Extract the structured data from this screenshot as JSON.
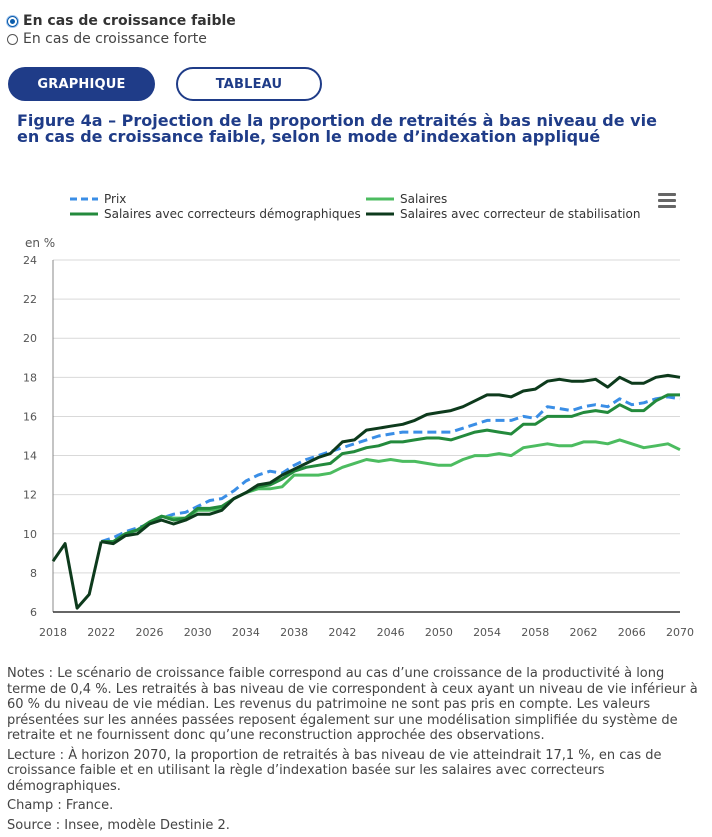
{
  "options": {
    "faible": "En cas de croissance faible",
    "forte": "En cas de croissance forte"
  },
  "tabs": {
    "graph": "GRAPHIQUE",
    "table": "TABLEAU"
  },
  "figure_title": "Figure 4a – Projection de la proportion de retraités à bas niveau de vie en cas de croissance faible, selon le mode d’indexation appliqué",
  "legend": {
    "prix": "Prix",
    "salaires": "Salaires",
    "corr_demo": "Salaires avec correcteurs démographiques",
    "corr_stab": "Salaires avec correcteur de stabilisation"
  },
  "colors": {
    "prix": "#3a8ee6",
    "salaires": "#4cbc60",
    "corr_demo": "#238a3c",
    "corr_stab": "#0d3a1c",
    "accent": "#1f3c88"
  },
  "unit_label": "en %",
  "chart_data": {
    "type": "line",
    "ylabel": "en %",
    "ylim": [
      6,
      24
    ],
    "yticks": [
      6,
      8,
      10,
      12,
      14,
      16,
      18,
      20,
      22,
      24
    ],
    "xlim": [
      2018,
      2070
    ],
    "xticks": [
      2018,
      2022,
      2026,
      2030,
      2034,
      2038,
      2042,
      2046,
      2050,
      2054,
      2058,
      2062,
      2066,
      2070
    ],
    "x": [
      2018,
      2019,
      2020,
      2021,
      2022,
      2023,
      2024,
      2025,
      2026,
      2027,
      2028,
      2029,
      2030,
      2031,
      2032,
      2033,
      2034,
      2035,
      2036,
      2037,
      2038,
      2039,
      2040,
      2041,
      2042,
      2043,
      2044,
      2045,
      2046,
      2047,
      2048,
      2049,
      2050,
      2051,
      2052,
      2053,
      2054,
      2055,
      2056,
      2057,
      2058,
      2059,
      2060,
      2061,
      2062,
      2063,
      2064,
      2065,
      2066,
      2067,
      2068,
      2069,
      2070
    ],
    "historical_x": [
      2018,
      2019,
      2020,
      2021,
      2022
    ],
    "historical_values": [
      8.6,
      9.5,
      6.2,
      6.9,
      9.6
    ],
    "series": [
      {
        "key": "prix",
        "name": "Prix",
        "dashed": true,
        "values": [
          null,
          null,
          null,
          null,
          9.6,
          9.8,
          10.1,
          10.3,
          10.5,
          10.8,
          11.0,
          11.1,
          11.4,
          11.7,
          11.8,
          12.2,
          12.7,
          13.0,
          13.2,
          13.1,
          13.5,
          13.8,
          14.0,
          14.2,
          14.4,
          14.6,
          14.8,
          15.0,
          15.1,
          15.2,
          15.2,
          15.2,
          15.2,
          15.2,
          15.4,
          15.6,
          15.8,
          15.8,
          15.8,
          16.0,
          15.9,
          16.5,
          16.4,
          16.3,
          16.5,
          16.6,
          16.5,
          16.9,
          16.6,
          16.7,
          16.9,
          17.0,
          16.9
        ]
      },
      {
        "key": "salaires",
        "name": "Salaires",
        "dashed": false,
        "values": [
          null,
          null,
          null,
          null,
          9.6,
          9.6,
          10.0,
          10.2,
          10.5,
          10.9,
          10.8,
          10.8,
          11.2,
          11.2,
          11.3,
          11.8,
          12.1,
          12.3,
          12.3,
          12.4,
          13.0,
          13.0,
          13.0,
          13.1,
          13.4,
          13.6,
          13.8,
          13.7,
          13.8,
          13.7,
          13.7,
          13.6,
          13.5,
          13.5,
          13.8,
          14.0,
          14.0,
          14.1,
          14.0,
          14.4,
          14.5,
          14.6,
          14.5,
          14.5,
          14.7,
          14.7,
          14.6,
          14.8,
          14.6,
          14.4,
          14.5,
          14.6,
          14.3
        ]
      },
      {
        "key": "corr_demo",
        "name": "Salaires avec correcteurs démographiques",
        "dashed": false,
        "values": [
          null,
          null,
          null,
          null,
          9.6,
          9.6,
          10.0,
          10.2,
          10.6,
          10.9,
          10.7,
          10.8,
          11.3,
          11.3,
          11.4,
          11.8,
          12.1,
          12.4,
          12.5,
          12.8,
          13.2,
          13.4,
          13.5,
          13.6,
          14.1,
          14.2,
          14.4,
          14.5,
          14.7,
          14.7,
          14.8,
          14.9,
          14.9,
          14.8,
          15.0,
          15.2,
          15.3,
          15.2,
          15.1,
          15.6,
          15.6,
          16.0,
          16.0,
          16.0,
          16.2,
          16.3,
          16.2,
          16.6,
          16.3,
          16.3,
          16.8,
          17.1,
          17.1
        ]
      },
      {
        "key": "corr_stab",
        "name": "Salaires avec correcteur de stabilisation",
        "dashed": false,
        "values": [
          null,
          null,
          null,
          null,
          9.6,
          9.5,
          9.9,
          10.0,
          10.5,
          10.7,
          10.5,
          10.7,
          11.0,
          11.0,
          11.2,
          11.8,
          12.1,
          12.5,
          12.6,
          13.0,
          13.3,
          13.6,
          13.9,
          14.1,
          14.7,
          14.8,
          15.3,
          15.4,
          15.5,
          15.6,
          15.8,
          16.1,
          16.2,
          16.3,
          16.5,
          16.8,
          17.1,
          17.1,
          17.0,
          17.3,
          17.4,
          17.8,
          17.9,
          17.8,
          17.8,
          17.9,
          17.5,
          18.0,
          17.7,
          17.7,
          18.0,
          18.1,
          18.0
        ]
      }
    ]
  },
  "notes": {
    "notes_text": "Notes : Le scénario de croissance faible correspond au cas d’une croissance de la productivité à long terme de 0,4 %. Les retraités à bas niveau de vie correspondent à ceux ayant un niveau de vie inférieur à 60 % du niveau de vie médian. Les revenus du patrimoine ne sont pas pris en compte. Les valeurs présentées sur les années passées reposent également sur une modélisation simplifiée du système de retraite et ne fournissent donc qu’une reconstruction approchée des observations.",
    "lecture": "Lecture : À horizon 2070, la proportion de retraités à bas niveau de vie atteindrait 17,1 %, en cas de croissance faible et en utilisant la règle d’indexation basée sur les salaires avec correcteurs démographiques.",
    "champ": "Champ : France.",
    "source": "Source : Insee, modèle Destinie 2."
  }
}
